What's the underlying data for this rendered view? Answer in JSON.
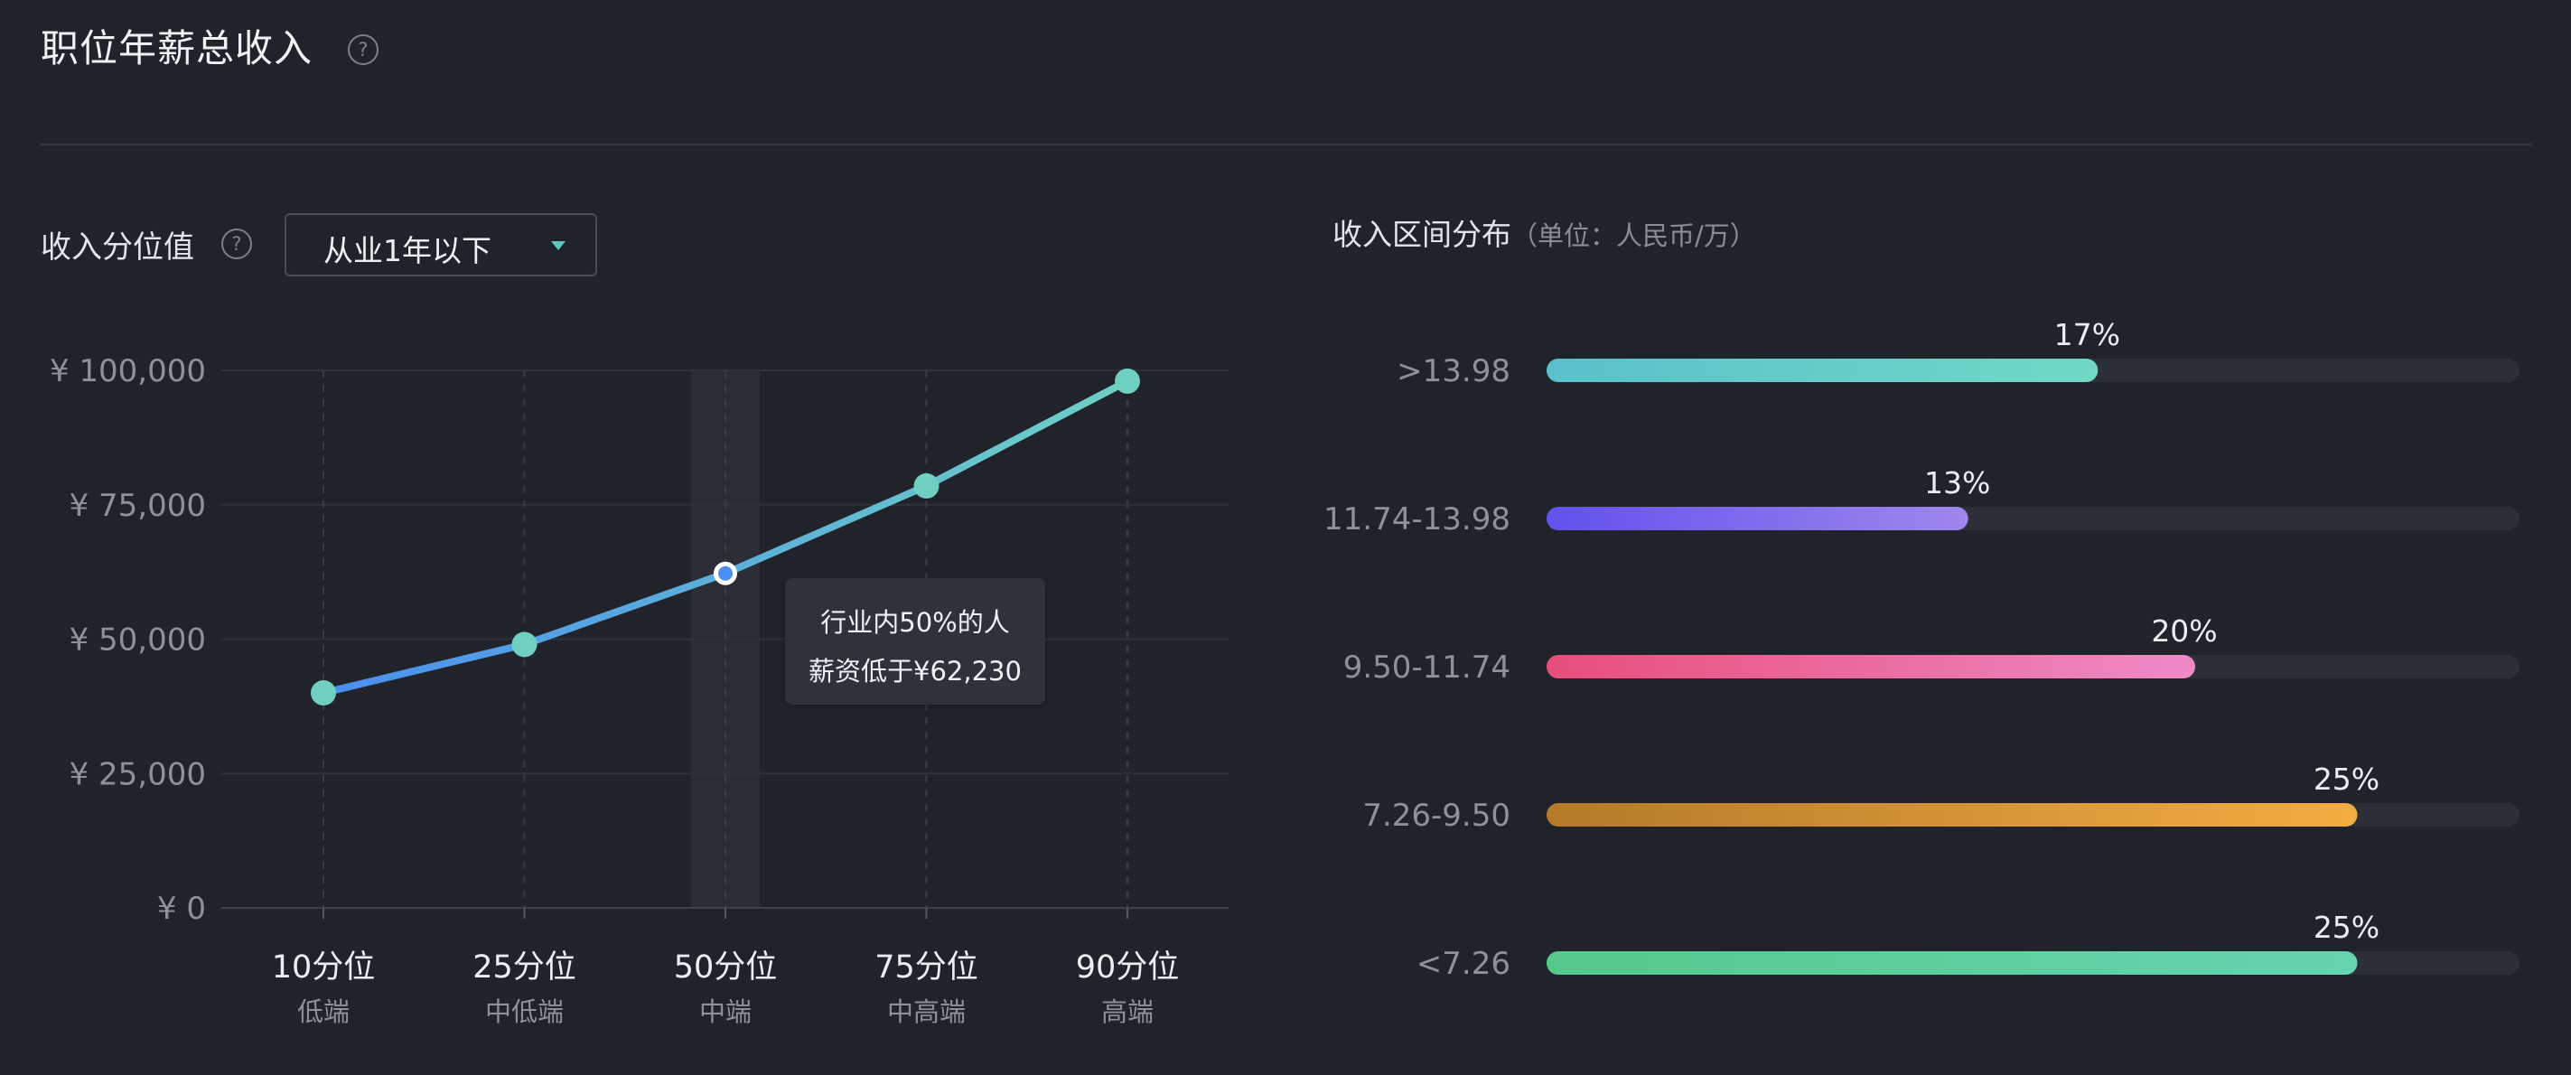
{
  "header": {
    "title": "职位年薪总收入",
    "help_icon": "question-circle-icon"
  },
  "percentile_section": {
    "label": "收入分位值",
    "dropdown": {
      "selected": "从业1年以下"
    }
  },
  "tooltip": {
    "line1": "行业内50%的人",
    "line2": "薪资低于¥62,230"
  },
  "distribution_section": {
    "title": "收入区间分布",
    "unit": "（单位：人民币/万）"
  },
  "colors": {
    "line_start": "#4a8ff0",
    "line_end": "#6fd0c4",
    "point": "#6fcfc1",
    "highlight_band": "#2c2e37",
    "bar_track": "#2c2e38"
  },
  "chart_data": [
    {
      "type": "line",
      "categories": [
        "10分位",
        "25分位",
        "50分位",
        "75分位",
        "90分位"
      ],
      "sublabels": [
        "低端",
        "中低端",
        "中端",
        "中高端",
        "高端"
      ],
      "values": [
        40000,
        49000,
        62230,
        78500,
        98000
      ],
      "y_ticks": [
        "¥ 0",
        "¥ 25,000",
        "¥ 50,000",
        "¥ 75,000",
        "¥ 100,000"
      ],
      "ylim": [
        0,
        100000
      ],
      "highlighted_index": 2,
      "grid": true
    },
    {
      "type": "bar",
      "orientation": "horizontal",
      "categories": [
        ">13.98",
        "11.74-13.98",
        "9.50-11.74",
        "7.26-9.50",
        "<7.26"
      ],
      "values": [
        17,
        13,
        20,
        25,
        25
      ],
      "value_labels": [
        "17%",
        "13%",
        "20%",
        "25%",
        "25%"
      ],
      "max_value": 30,
      "bar_colors": [
        [
          "#59c0cc",
          "#72d8c5"
        ],
        [
          "#6251ee",
          "#9f87ec"
        ],
        [
          "#e64f7b",
          "#ef8ac6"
        ],
        [
          "#b57a28",
          "#f2ad42"
        ],
        [
          "#54c98a",
          "#66d4b0"
        ]
      ]
    }
  ]
}
